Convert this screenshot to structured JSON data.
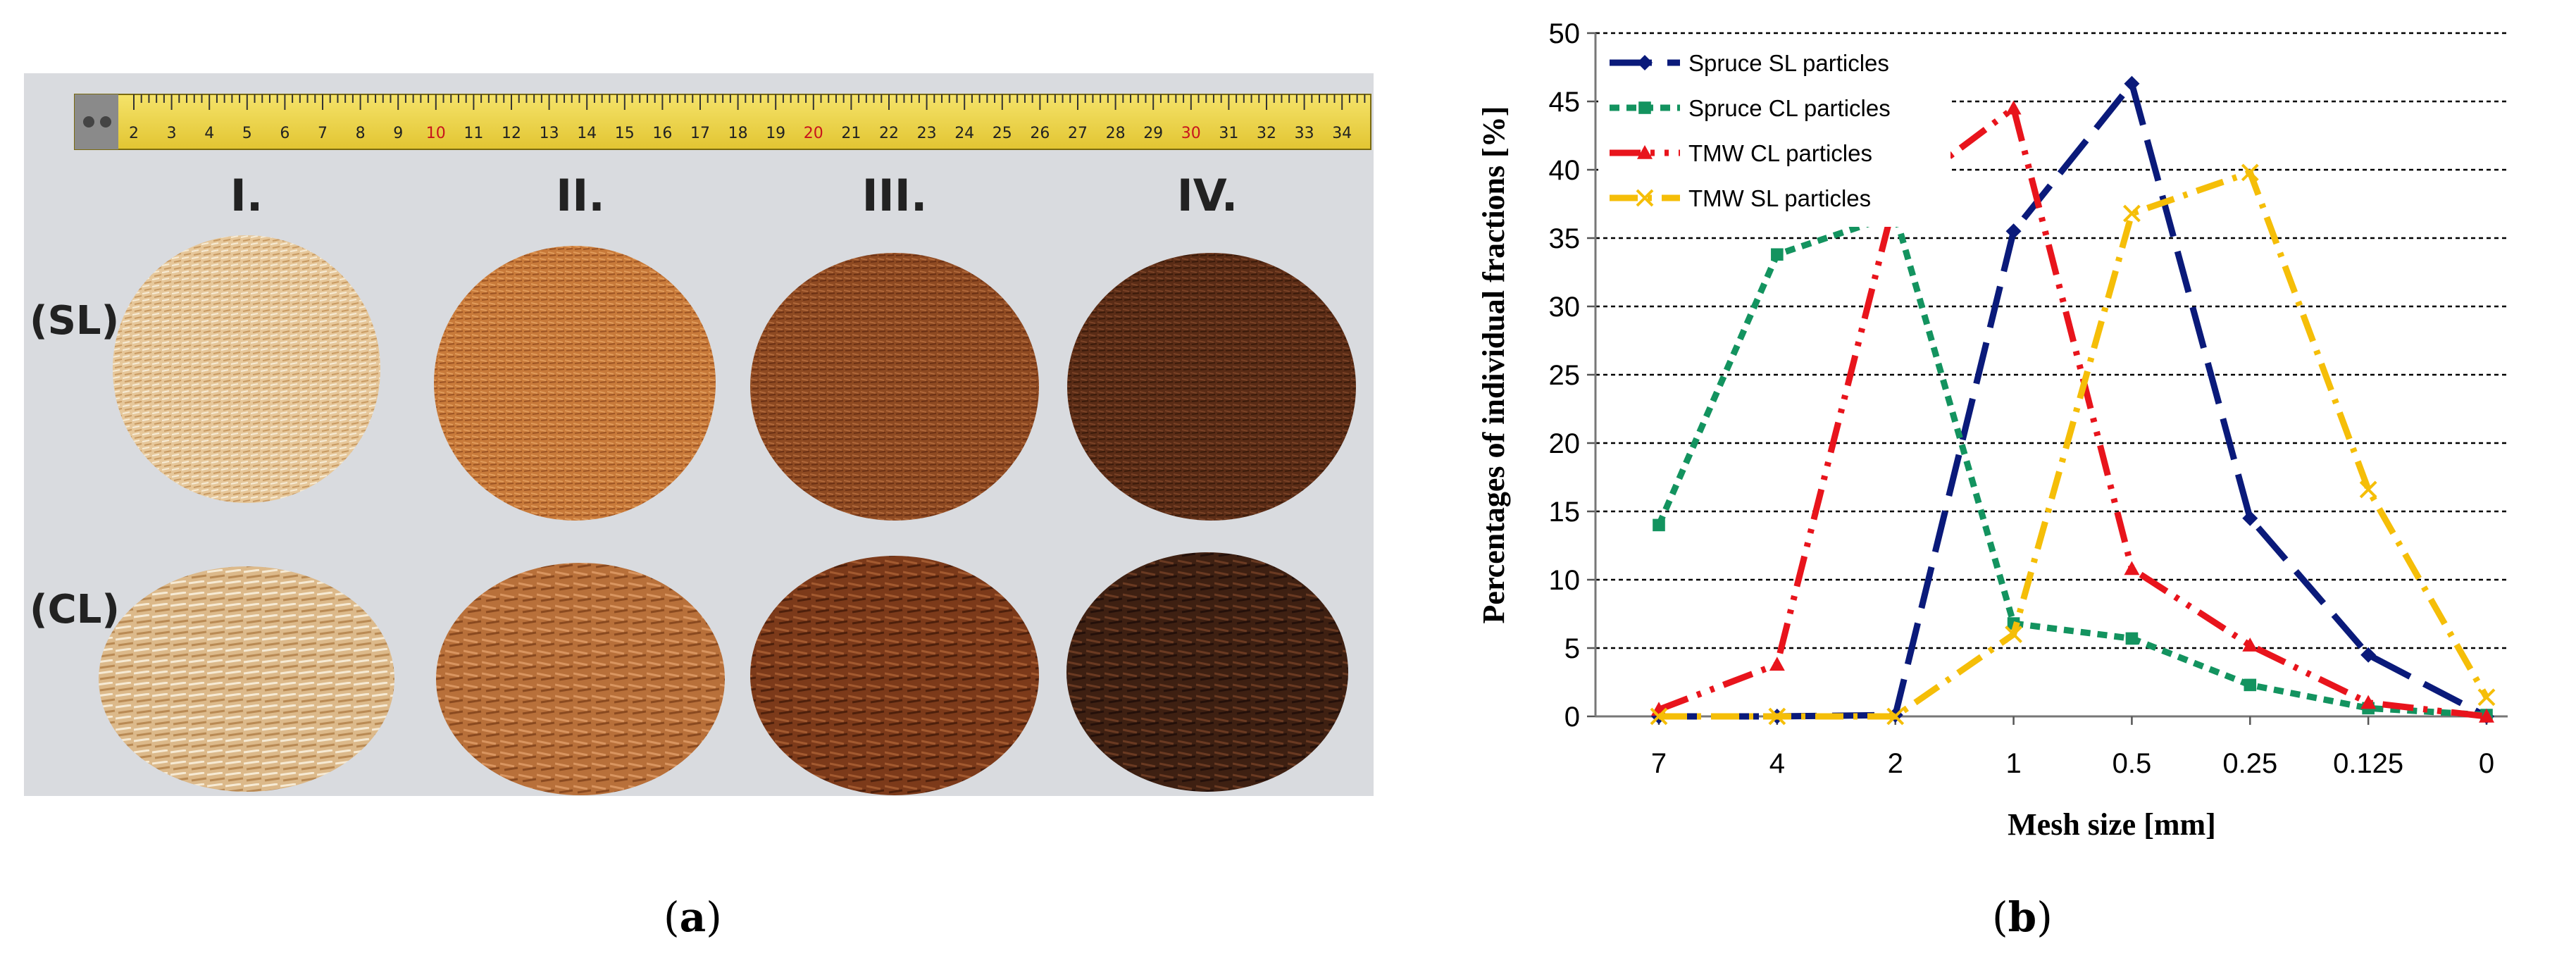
{
  "photo": {
    "column_labels": [
      "I.",
      "II.",
      "III.",
      "IV."
    ],
    "row_labels": [
      "(SL)",
      "(CL)"
    ],
    "ruler_numbers": [
      "2",
      "3",
      "4",
      "5",
      "6",
      "7",
      "8",
      "9",
      "10",
      "11",
      "12",
      "13",
      "14",
      "15",
      "16",
      "17",
      "18",
      "19",
      "20",
      "21",
      "22",
      "23",
      "24",
      "25",
      "26",
      "27",
      "28",
      "29",
      "30",
      "31",
      "32",
      "33",
      "34"
    ]
  },
  "captions": {
    "a": "a",
    "b": "b"
  },
  "chart_data": {
    "type": "line",
    "title": "",
    "xlabel": "Mesh size [mm]",
    "ylabel": "Percentages of individual fractions [%]",
    "categories": [
      "7",
      "4",
      "2",
      "1",
      "0.5",
      "0.25",
      "0.125",
      "0"
    ],
    "ylim": [
      0,
      50
    ],
    "yticks": [
      0,
      5,
      10,
      15,
      20,
      25,
      30,
      35,
      40,
      45,
      50
    ],
    "grid": true,
    "legend_position": "top-left",
    "series": [
      {
        "name": "Spruce SL particles",
        "color": "#0a1a7a",
        "dash": "60,22",
        "marker": "diamond",
        "values": [
          0,
          0,
          0.1,
          35.5,
          46.3,
          14.5,
          4.5,
          0
        ]
      },
      {
        "name": "Spruce CL particles",
        "color": "#13935f",
        "dash": "14,10",
        "marker": "square",
        "values": [
          14,
          33.8,
          36.7,
          6.8,
          5.7,
          2.3,
          0.6,
          0.1
        ]
      },
      {
        "name": "TMW CL particles",
        "color": "#e8141c",
        "dash": "44,14,6,14,6,14",
        "marker": "triangle",
        "values": [
          0.5,
          3.8,
          38,
          44.5,
          10.8,
          5.2,
          1,
          0
        ]
      },
      {
        "name": "TMW SL particles",
        "color": "#f5be08",
        "dash": "40,14,6,14",
        "marker": "x",
        "values": [
          0,
          0,
          0,
          6,
          36.8,
          39.8,
          16.6,
          1.4
        ]
      }
    ]
  }
}
